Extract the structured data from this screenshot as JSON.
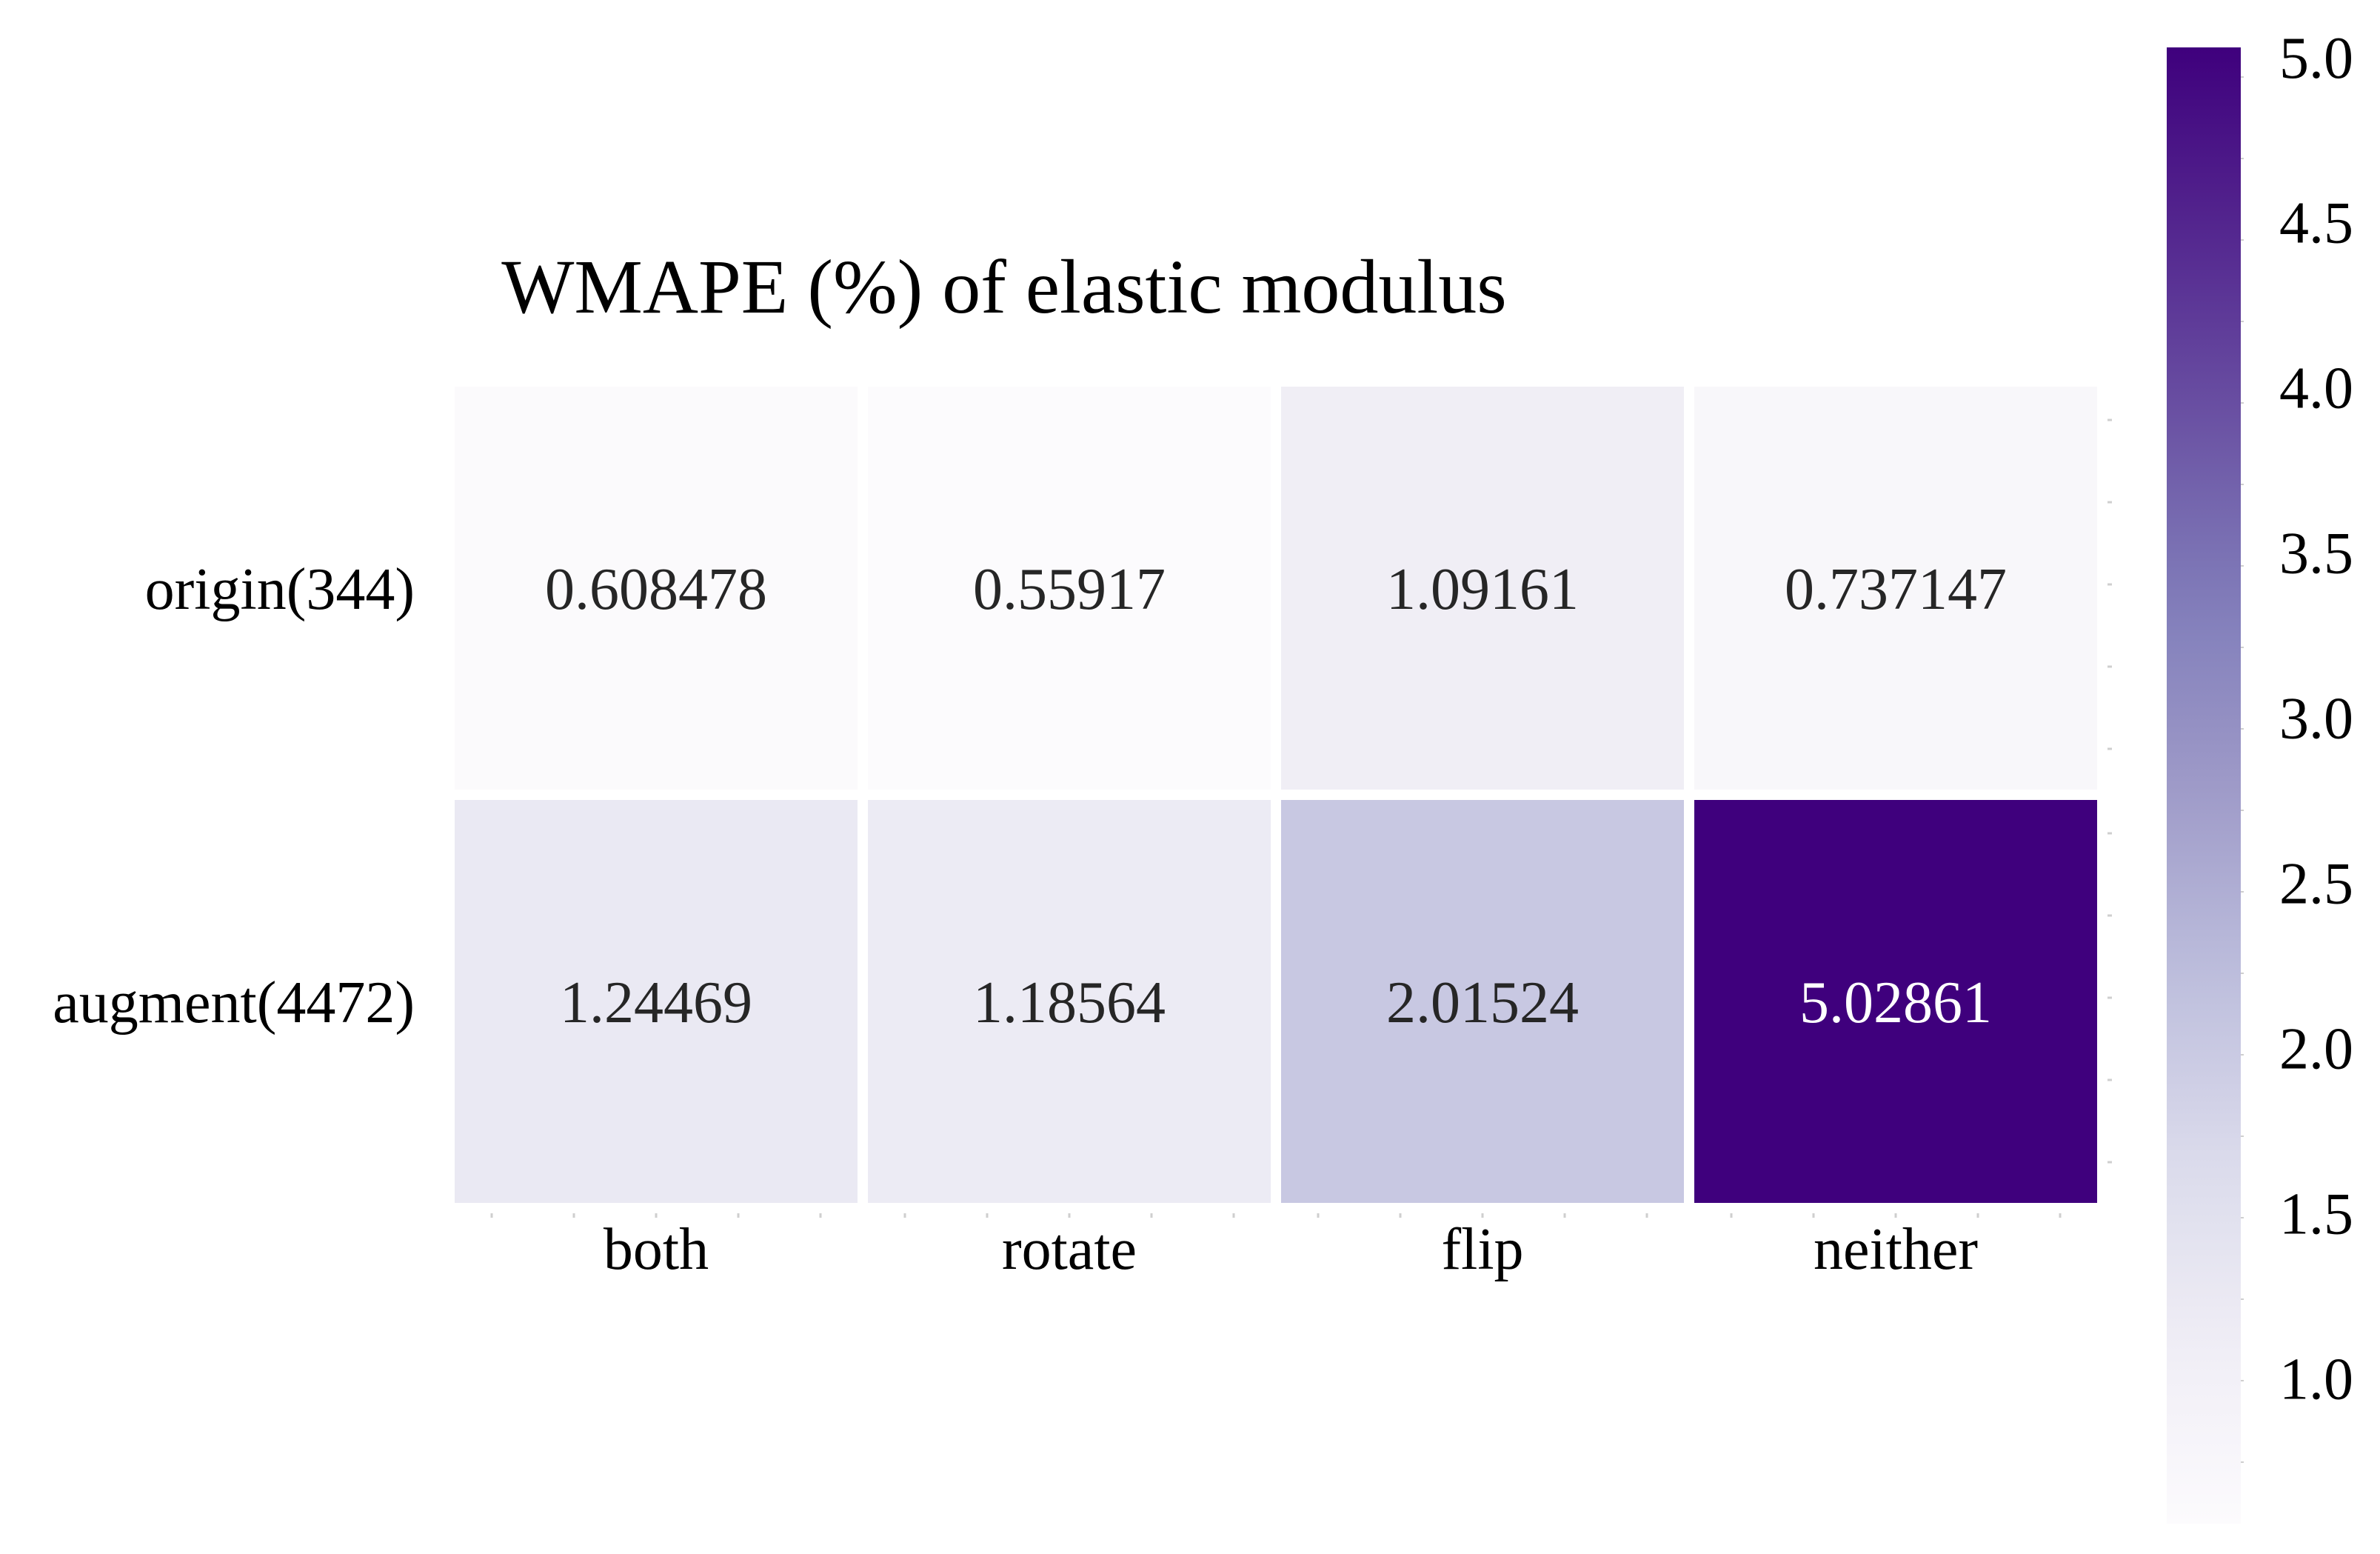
{
  "chart_data": {
    "type": "heatmap",
    "title": "WMAPE (%) of elastic modulus",
    "xlabel": "",
    "ylabel": "",
    "columns": [
      "both",
      "rotate",
      "flip",
      "neither"
    ],
    "rows": [
      "origin(344)",
      "augment(4472)"
    ],
    "values": [
      [
        0.608478,
        0.55917,
        1.09161,
        0.737147
      ],
      [
        1.24469,
        1.18564,
        2.01524,
        5.02861
      ]
    ],
    "value_labels": [
      [
        "0.608478",
        "0.55917",
        "1.09161",
        "0.737147"
      ],
      [
        "1.24469",
        "1.18564",
        "2.01524",
        "5.02861"
      ]
    ],
    "colormap": "Purples",
    "colorbar": {
      "vmin": 0.55917,
      "vmax": 5.02861,
      "ticks": [
        1.0,
        1.5,
        2.0,
        2.5,
        3.0,
        3.5,
        4.0,
        4.5,
        5.0
      ],
      "tick_labels": [
        "1.0",
        "1.5",
        "2.0",
        "2.5",
        "3.0",
        "3.5",
        "4.0",
        "4.5",
        "5.0"
      ]
    },
    "colors": {
      "low": "#fcfbfd",
      "high": "#3f007d",
      "cell_border": "#ffffff",
      "dark_text": "#262626",
      "light_text": "#ffffff"
    },
    "grid": false,
    "legend": "colorbar-right"
  }
}
